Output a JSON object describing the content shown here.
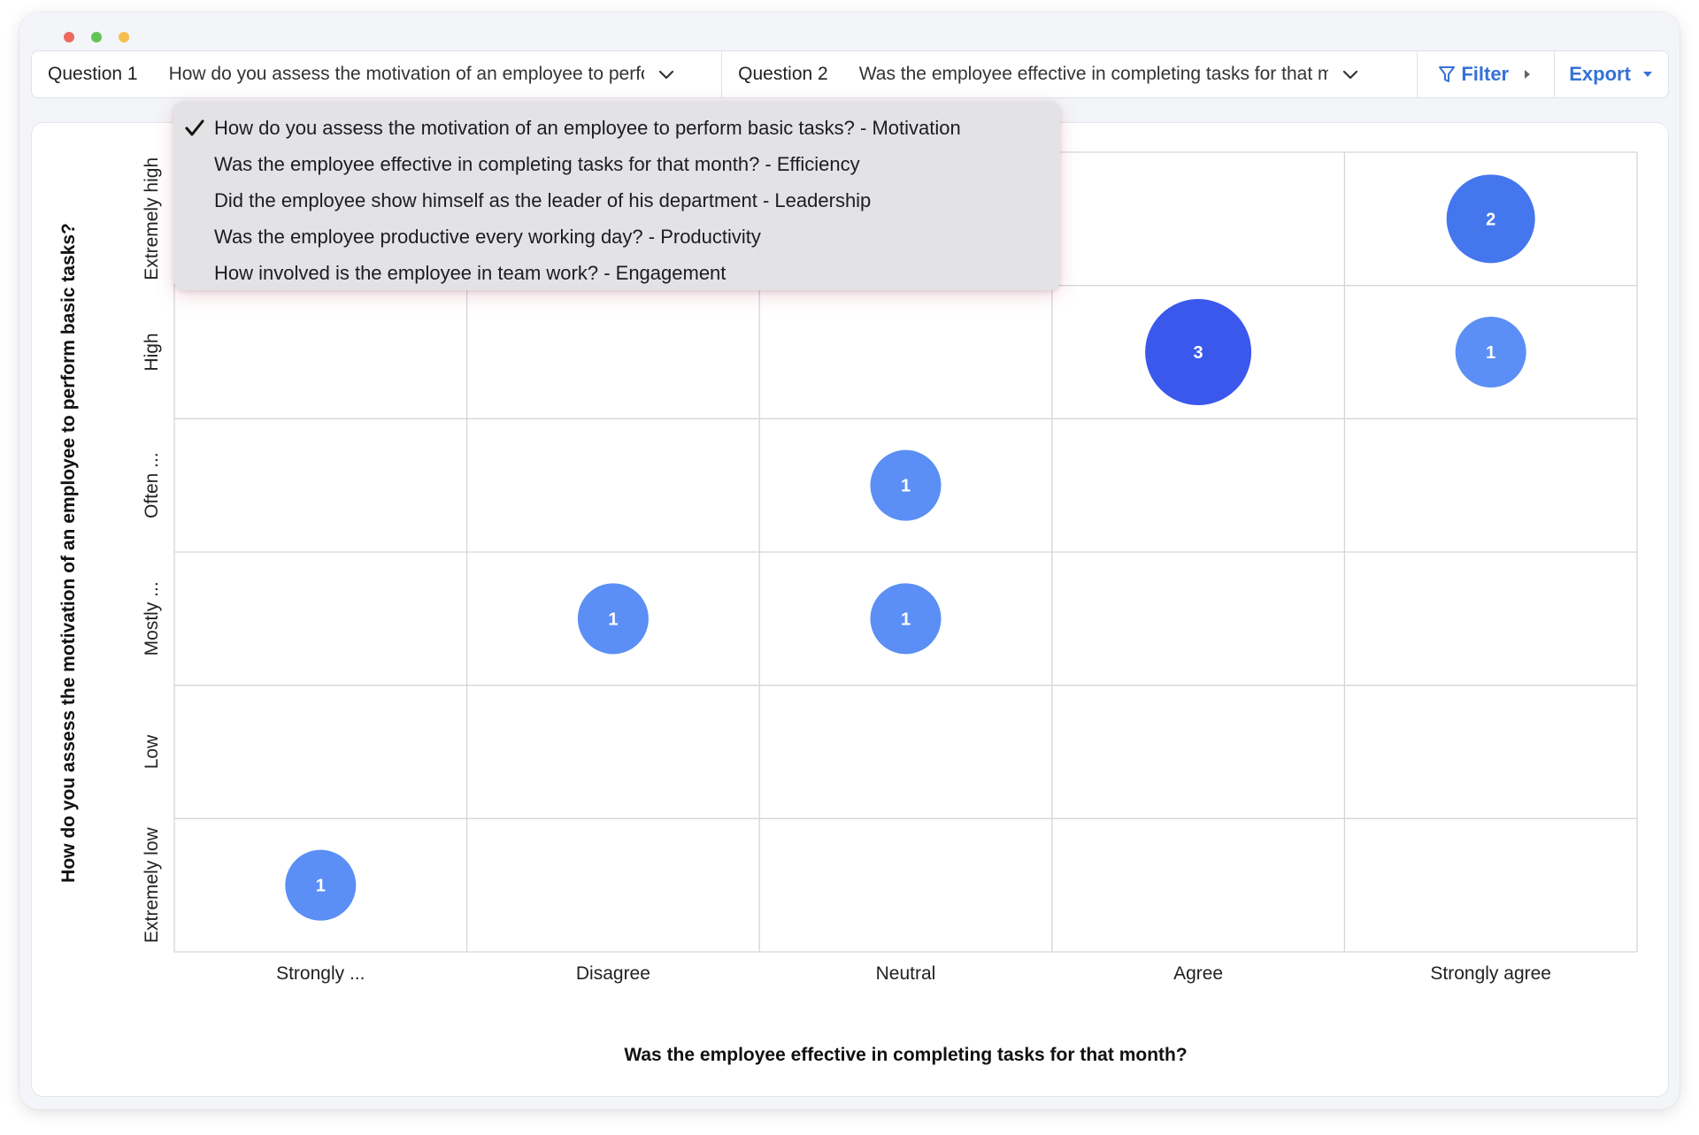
{
  "window": {
    "traffic_colors": [
      "#ed6a5e",
      "#61c454",
      "#f4bf4f"
    ]
  },
  "toolbar": {
    "question1_label": "Question 1",
    "question1_value": "How do you assess the motivation of an employee to perform basic tasks? - Motivation",
    "question2_label": "Question 2",
    "question2_value": "Was the employee effective in completing tasks for that month? - Efficiency",
    "filter_label": "Filter",
    "export_label": "Export",
    "accent_color": "#3572d6"
  },
  "dropdown": {
    "items": [
      {
        "label": "How do you assess the motivation of an employee to perform basic tasks? - Motivation",
        "selected": true
      },
      {
        "label": "Was the employee effective in completing tasks for that month? - Efficiency",
        "selected": false
      },
      {
        "label": "Did the employee show himself as the leader of his department - Leadership",
        "selected": false
      },
      {
        "label": "Was the employee productive every working day? - Productivity",
        "selected": false
      },
      {
        "label": "How involved is the employee in team work? - Engagement",
        "selected": false
      }
    ]
  },
  "chart_data": {
    "type": "scatter",
    "variant": "bubble-matrix",
    "xlabel": "Was the employee effective in completing tasks for that month?",
    "ylabel": "How do you assess the motivation of an employee to perform basic tasks?",
    "x_categories": [
      "Strongly ...",
      "Disagree",
      "Neutral",
      "Agree",
      "Strongly agree"
    ],
    "y_categories": [
      "Extremely high",
      "High",
      "Often ...",
      "Mostly ...",
      "Low",
      "Extremely low"
    ],
    "grid": true,
    "points": [
      {
        "x": "Strongly agree",
        "y": "Extremely high",
        "count": 2
      },
      {
        "x": "Agree",
        "y": "High",
        "count": 3
      },
      {
        "x": "Strongly agree",
        "y": "High",
        "count": 1
      },
      {
        "x": "Neutral",
        "y": "Often ...",
        "count": 1
      },
      {
        "x": "Disagree",
        "y": "Mostly ...",
        "count": 1
      },
      {
        "x": "Neutral",
        "y": "Mostly ...",
        "count": 1
      },
      {
        "x": "Strongly ...",
        "y": "Extremely low",
        "count": 1
      }
    ],
    "count_colors": {
      "1": "#5b8ff5",
      "2": "#4476ee",
      "3": "#3a58ec"
    }
  }
}
